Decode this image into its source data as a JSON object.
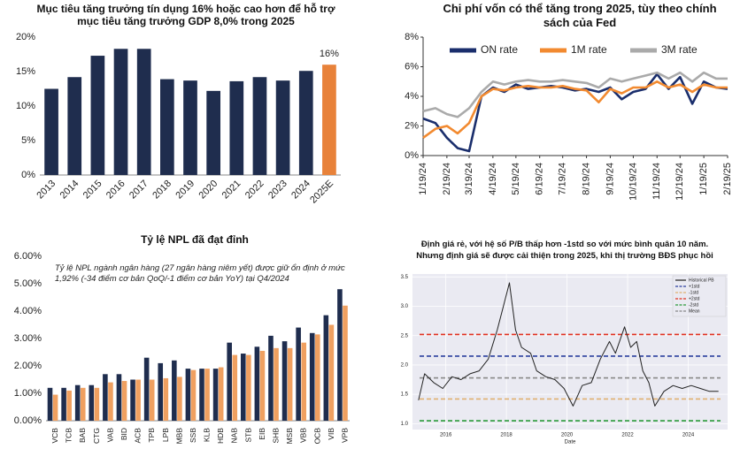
{
  "chart_data": [
    {
      "type": "bar",
      "title": "Mục tiêu tăng trưởng tín dụng 16% hoặc cao hơn để hỗ trợ mục tiêu tăng trưởng GDP 8,0% trong 2025",
      "categories": [
        "2013",
        "2014",
        "2015",
        "2016",
        "2017",
        "2018",
        "2019",
        "2020",
        "2021",
        "2022",
        "2023",
        "2024",
        "2025E"
      ],
      "values": [
        12.5,
        14.2,
        17.3,
        18.3,
        18.3,
        13.9,
        13.7,
        12.2,
        13.6,
        14.2,
        13.7,
        15.1,
        16
      ],
      "value_labels": [
        null,
        null,
        null,
        null,
        null,
        null,
        null,
        null,
        null,
        null,
        null,
        null,
        "16%"
      ],
      "colors": [
        "#1f2d4e",
        "#1f2d4e",
        "#1f2d4e",
        "#1f2d4e",
        "#1f2d4e",
        "#1f2d4e",
        "#1f2d4e",
        "#1f2d4e",
        "#1f2d4e",
        "#1f2d4e",
        "#1f2d4e",
        "#1f2d4e",
        "#e8823a"
      ],
      "ylim": [
        0,
        20
      ],
      "yticks": [
        {
          "value": 0,
          "label": "0%"
        },
        {
          "value": 5,
          "label": "5%"
        },
        {
          "value": 10,
          "label": "10%"
        },
        {
          "value": 15,
          "label": "15%"
        },
        {
          "value": 20,
          "label": "20%"
        }
      ],
      "grid": false
    },
    {
      "type": "line",
      "title": "Chi phí vốn có thể tăng trong 2025, tùy theo chính sách của Fed",
      "x": [
        "1/19/24",
        "2/4/24",
        "2/19/24",
        "3/4/24",
        "3/19/24",
        "4/4/24",
        "4/19/24",
        "5/4/24",
        "5/19/24",
        "6/4/24",
        "6/19/24",
        "7/4/24",
        "7/19/24",
        "8/4/24",
        "8/19/24",
        "9/4/24",
        "9/19/24",
        "10/4/24",
        "10/19/24",
        "11/4/24",
        "11/19/24",
        "12/4/24",
        "12/19/24",
        "1/4/25",
        "1/19/25",
        "2/4/25",
        "2/19/25"
      ],
      "series": [
        {
          "name": "ON rate",
          "color": "#1a2e6c",
          "values": [
            2.5,
            2.2,
            1.2,
            0.5,
            0.3,
            4.0,
            4.6,
            4.3,
            4.8,
            4.5,
            4.6,
            4.7,
            4.6,
            4.4,
            4.5,
            4.3,
            4.6,
            3.8,
            4.3,
            4.5,
            5.5,
            4.5,
            5.3,
            3.5,
            5.0,
            4.6,
            4.5
          ]
        },
        {
          "name": "1M rate",
          "color": "#f28a30",
          "values": [
            1.2,
            1.8,
            2.0,
            1.5,
            2.2,
            4.0,
            4.5,
            4.4,
            4.6,
            4.7,
            4.6,
            4.6,
            4.7,
            4.5,
            4.4,
            3.6,
            4.5,
            4.2,
            4.6,
            4.6,
            5.0,
            4.6,
            4.8,
            4.3,
            4.8,
            4.6,
            4.6
          ]
        },
        {
          "name": "3M rate",
          "color": "#aaaaaa",
          "values": [
            3.0,
            3.2,
            2.8,
            2.6,
            3.2,
            4.3,
            5.0,
            4.8,
            5.0,
            5.1,
            5.0,
            5.0,
            5.1,
            5.0,
            4.9,
            4.6,
            5.2,
            5.0,
            5.2,
            5.4,
            5.6,
            5.2,
            5.6,
            5.0,
            5.6,
            5.2,
            5.2
          ]
        }
      ],
      "xlim": [
        "1/19/24",
        "2/19/25"
      ],
      "xticks": [
        "1/19/24",
        "2/19/24",
        "3/19/24",
        "4/19/24",
        "5/19/24",
        "6/19/24",
        "7/19/24",
        "8/19/24",
        "9/19/24",
        "10/19/24",
        "11/19/24",
        "12/19/24",
        "1/19/25",
        "2/19/25"
      ],
      "ylim": [
        0,
        8
      ],
      "yticks": [
        {
          "value": 0,
          "label": "0%"
        },
        {
          "value": 2,
          "label": "2%"
        },
        {
          "value": 4,
          "label": "4%"
        },
        {
          "value": 6,
          "label": "6%"
        },
        {
          "value": 8,
          "label": "8%"
        }
      ],
      "grid": false,
      "legend": "upper center"
    },
    {
      "type": "bar",
      "title": "Tỷ lệ NPL đã đạt đỉnh",
      "annotation": "Tỷ lệ NPL ngành ngân hàng (27 ngân hàng niêm yết) được giữ ổn định ở mức 1,92% (-34 điểm cơ bản QoQ/-1 điểm cơ bản YoY) tại Q4/2024",
      "categories": [
        "VCB",
        "TCB",
        "BAB",
        "CTG",
        "VAB",
        "BID",
        "ACB",
        "TPB",
        "LPB",
        "MBB",
        "SSB",
        "KLB",
        "HDB",
        "NAB",
        "STB",
        "EIB",
        "SHB",
        "MSB",
        "VBB",
        "OCB",
        "VIB",
        "VPB"
      ],
      "series": [
        {
          "color": "#1f2d4e",
          "values": [
            1.2,
            1.2,
            1.3,
            1.3,
            1.7,
            1.7,
            1.5,
            2.3,
            2.1,
            2.2,
            1.9,
            1.9,
            1.9,
            2.85,
            2.45,
            2.7,
            3.1,
            2.9,
            3.4,
            3.2,
            3.85,
            4.8
          ]
        },
        {
          "color": "#f0a060",
          "values": [
            0.95,
            1.1,
            1.2,
            1.2,
            1.4,
            1.45,
            1.5,
            1.5,
            1.55,
            1.6,
            1.85,
            1.9,
            1.95,
            2.4,
            2.4,
            2.55,
            2.65,
            2.65,
            2.85,
            3.15,
            3.5,
            4.2
          ]
        }
      ],
      "ylim": [
        0,
        6
      ],
      "yticks": [
        {
          "value": 0,
          "label": "0.00%"
        },
        {
          "value": 1,
          "label": "1.00%"
        },
        {
          "value": 2,
          "label": "2.00%"
        },
        {
          "value": 3,
          "label": "3.00%"
        },
        {
          "value": 4,
          "label": "4.00%"
        },
        {
          "value": 5,
          "label": "5.00%"
        },
        {
          "value": 6,
          "label": "6.00%"
        }
      ],
      "grid": false
    },
    {
      "type": "line",
      "title": "Định giá rẻ, với hệ số P/B thấp hơn -1std so với mức bình quân 10 năm.",
      "subtitle": "Nhưng định giá sẽ được cải thiện trong 2025, khi thị trường BĐS phục hồi",
      "xlabel": "Date",
      "x": [
        2015.1,
        2015.3,
        2015.6,
        2015.9,
        2016.2,
        2016.5,
        2016.8,
        2017.1,
        2017.4,
        2017.7,
        2017.9,
        2018.1,
        2018.3,
        2018.5,
        2018.8,
        2019.0,
        2019.3,
        2019.6,
        2019.9,
        2020.2,
        2020.5,
        2020.8,
        2021.1,
        2021.4,
        2021.6,
        2021.9,
        2022.1,
        2022.3,
        2022.5,
        2022.7,
        2022.9,
        2023.2,
        2023.5,
        2023.8,
        2024.1,
        2024.4,
        2024.7,
        2025.0
      ],
      "series": [
        {
          "name": "Historical PB",
          "color": "#222222",
          "values": [
            1.4,
            1.85,
            1.7,
            1.6,
            1.8,
            1.75,
            1.85,
            1.9,
            2.1,
            2.6,
            3.0,
            3.4,
            2.6,
            2.3,
            2.2,
            1.9,
            1.8,
            1.75,
            1.6,
            1.3,
            1.65,
            1.7,
            2.1,
            2.4,
            2.2,
            2.65,
            2.3,
            2.4,
            1.9,
            1.7,
            1.3,
            1.55,
            1.65,
            1.6,
            1.65,
            1.6,
            1.55,
            1.55
          ]
        }
      ],
      "reference_lines": [
        {
          "name": "+1std",
          "color": "#2b3f9e",
          "value": 2.15
        },
        {
          "name": "-1std",
          "color": "#e0b070",
          "value": 1.42
        },
        {
          "name": "+2std",
          "color": "#e03020",
          "value": 2.52
        },
        {
          "name": "-2std",
          "color": "#2a9a3a",
          "value": 1.05
        },
        {
          "name": "Mean",
          "color": "#888888",
          "value": 1.78
        }
      ],
      "xlim": [
        2014.9,
        2025.3
      ],
      "xticks": [
        2016,
        2018,
        2020,
        2022,
        2024
      ],
      "ylim": [
        0.9,
        3.55
      ],
      "yticks": [
        {
          "value": 1,
          "label": "1.0"
        },
        1.5,
        {
          "value": 2,
          "label": "2.0"
        },
        2.5,
        {
          "value": 3,
          "label": "3.0"
        },
        3.5
      ],
      "grid": true,
      "legend": "upper right"
    }
  ]
}
